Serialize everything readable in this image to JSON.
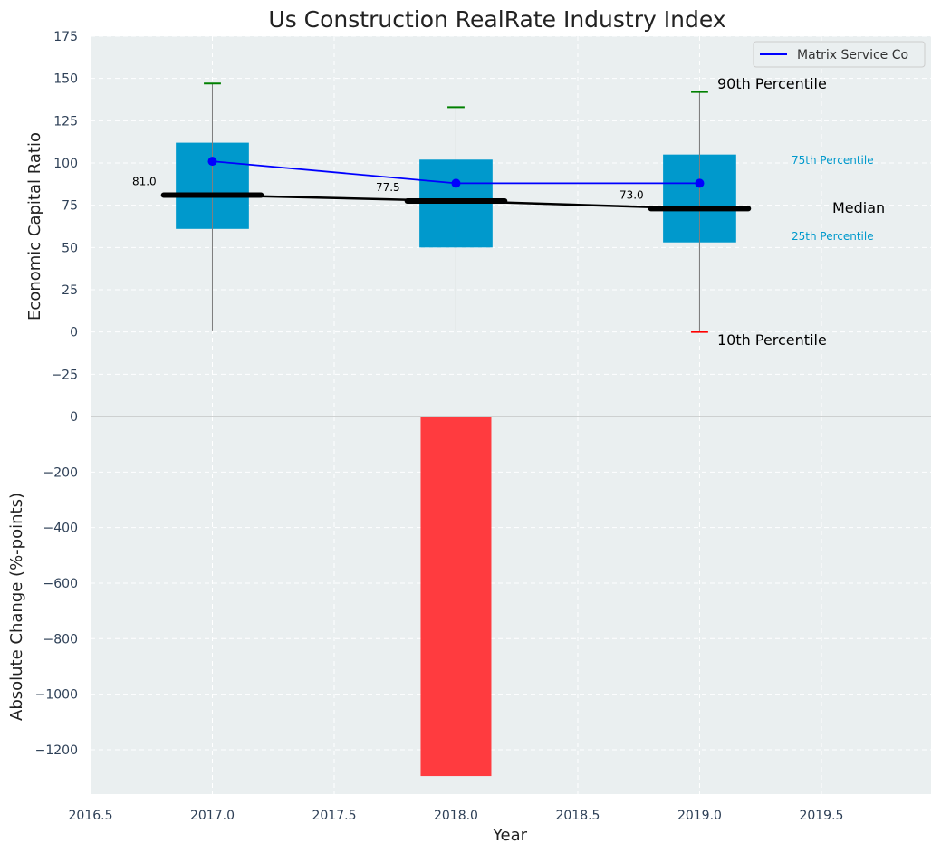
{
  "chart_data": [
    {
      "type": "box",
      "title": "Us Construction RealRate Industry Index",
      "ylabel": "Economic Capital Ratio",
      "ylim": [
        -50,
        175
      ],
      "yticks": [
        -25,
        0,
        25,
        50,
        75,
        100,
        125,
        150,
        175
      ],
      "xlim": [
        2016.5,
        2019.95
      ],
      "xticks": [
        2016.5,
        2017.0,
        2017.5,
        2018.0,
        2018.5,
        2019.0,
        2019.5
      ],
      "grid": true,
      "legend_placement": "top-right",
      "categories": [
        2017,
        2018,
        2019
      ],
      "percentile_10": [
        1,
        1,
        0
      ],
      "percentile_25": [
        61,
        50,
        53
      ],
      "median": [
        81.0,
        77.5,
        73.0
      ],
      "percentile_75": [
        112,
        102,
        105
      ],
      "percentile_90": [
        147,
        133,
        142
      ],
      "series": [
        {
          "name": "Matrix Service Co",
          "values": [
            101,
            88,
            88
          ]
        }
      ],
      "annotations": {
        "p90": "90th Percentile",
        "p75": "75th Percentile",
        "median": "Median",
        "p25": "25th Percentile",
        "p10": "10th Percentile"
      },
      "colors": {
        "box": "#0099cc",
        "company_line": "#0000ff",
        "median_line": "#000000",
        "p90_cap": "#008000",
        "p10_cap": "#ff0000",
        "background": "#eaeff0"
      }
    },
    {
      "type": "bar",
      "ylabel": "Absolute Change (%-points)",
      "xlabel": "Year",
      "ylim": [
        -1360,
        0
      ],
      "yticks": [
        0,
        -200,
        -400,
        -600,
        -800,
        -1000,
        -1200
      ],
      "x": [
        2018.0
      ],
      "values": [
        -1295
      ],
      "bar_color": "#ff3b3f"
    }
  ]
}
